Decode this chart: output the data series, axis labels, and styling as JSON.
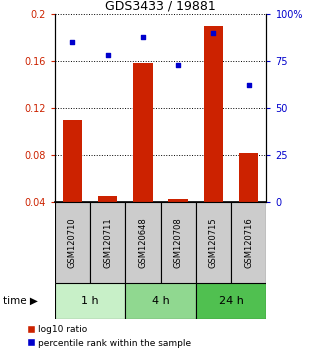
{
  "title": "GDS3433 / 19881",
  "samples": [
    "GSM120710",
    "GSM120711",
    "GSM120648",
    "GSM120708",
    "GSM120715",
    "GSM120716"
  ],
  "log10_ratio": [
    0.11,
    0.045,
    0.158,
    0.042,
    0.19,
    0.082
  ],
  "percentile_rank": [
    85,
    78,
    88,
    73,
    90,
    62
  ],
  "ylim_left": [
    0.04,
    0.2
  ],
  "ylim_right": [
    0,
    100
  ],
  "yticks_left": [
    0.04,
    0.08,
    0.12,
    0.16,
    0.2
  ],
  "ytick_labels_left": [
    "0.04",
    "0.08",
    "0.12",
    "0.16",
    "0.2"
  ],
  "yticks_right": [
    0,
    25,
    50,
    75,
    100
  ],
  "ytick_labels_right": [
    "0",
    "25",
    "50",
    "75",
    "100%"
  ],
  "time_groups": [
    {
      "label": "1 h",
      "indices": [
        0,
        1
      ],
      "color": "#c8f0c8"
    },
    {
      "label": "4 h",
      "indices": [
        2,
        3
      ],
      "color": "#90d890"
    },
    {
      "label": "24 h",
      "indices": [
        4,
        5
      ],
      "color": "#50c050"
    }
  ],
  "bar_color": "#cc2200",
  "dot_color": "#0000cc",
  "bar_width": 0.55,
  "legend_labels": [
    "log10 ratio",
    "percentile rank within the sample"
  ],
  "label_box_color": "#cccccc",
  "title_fontsize": 9,
  "tick_fontsize": 7,
  "sample_fontsize": 6,
  "time_fontsize": 8,
  "legend_fontsize": 6.5
}
